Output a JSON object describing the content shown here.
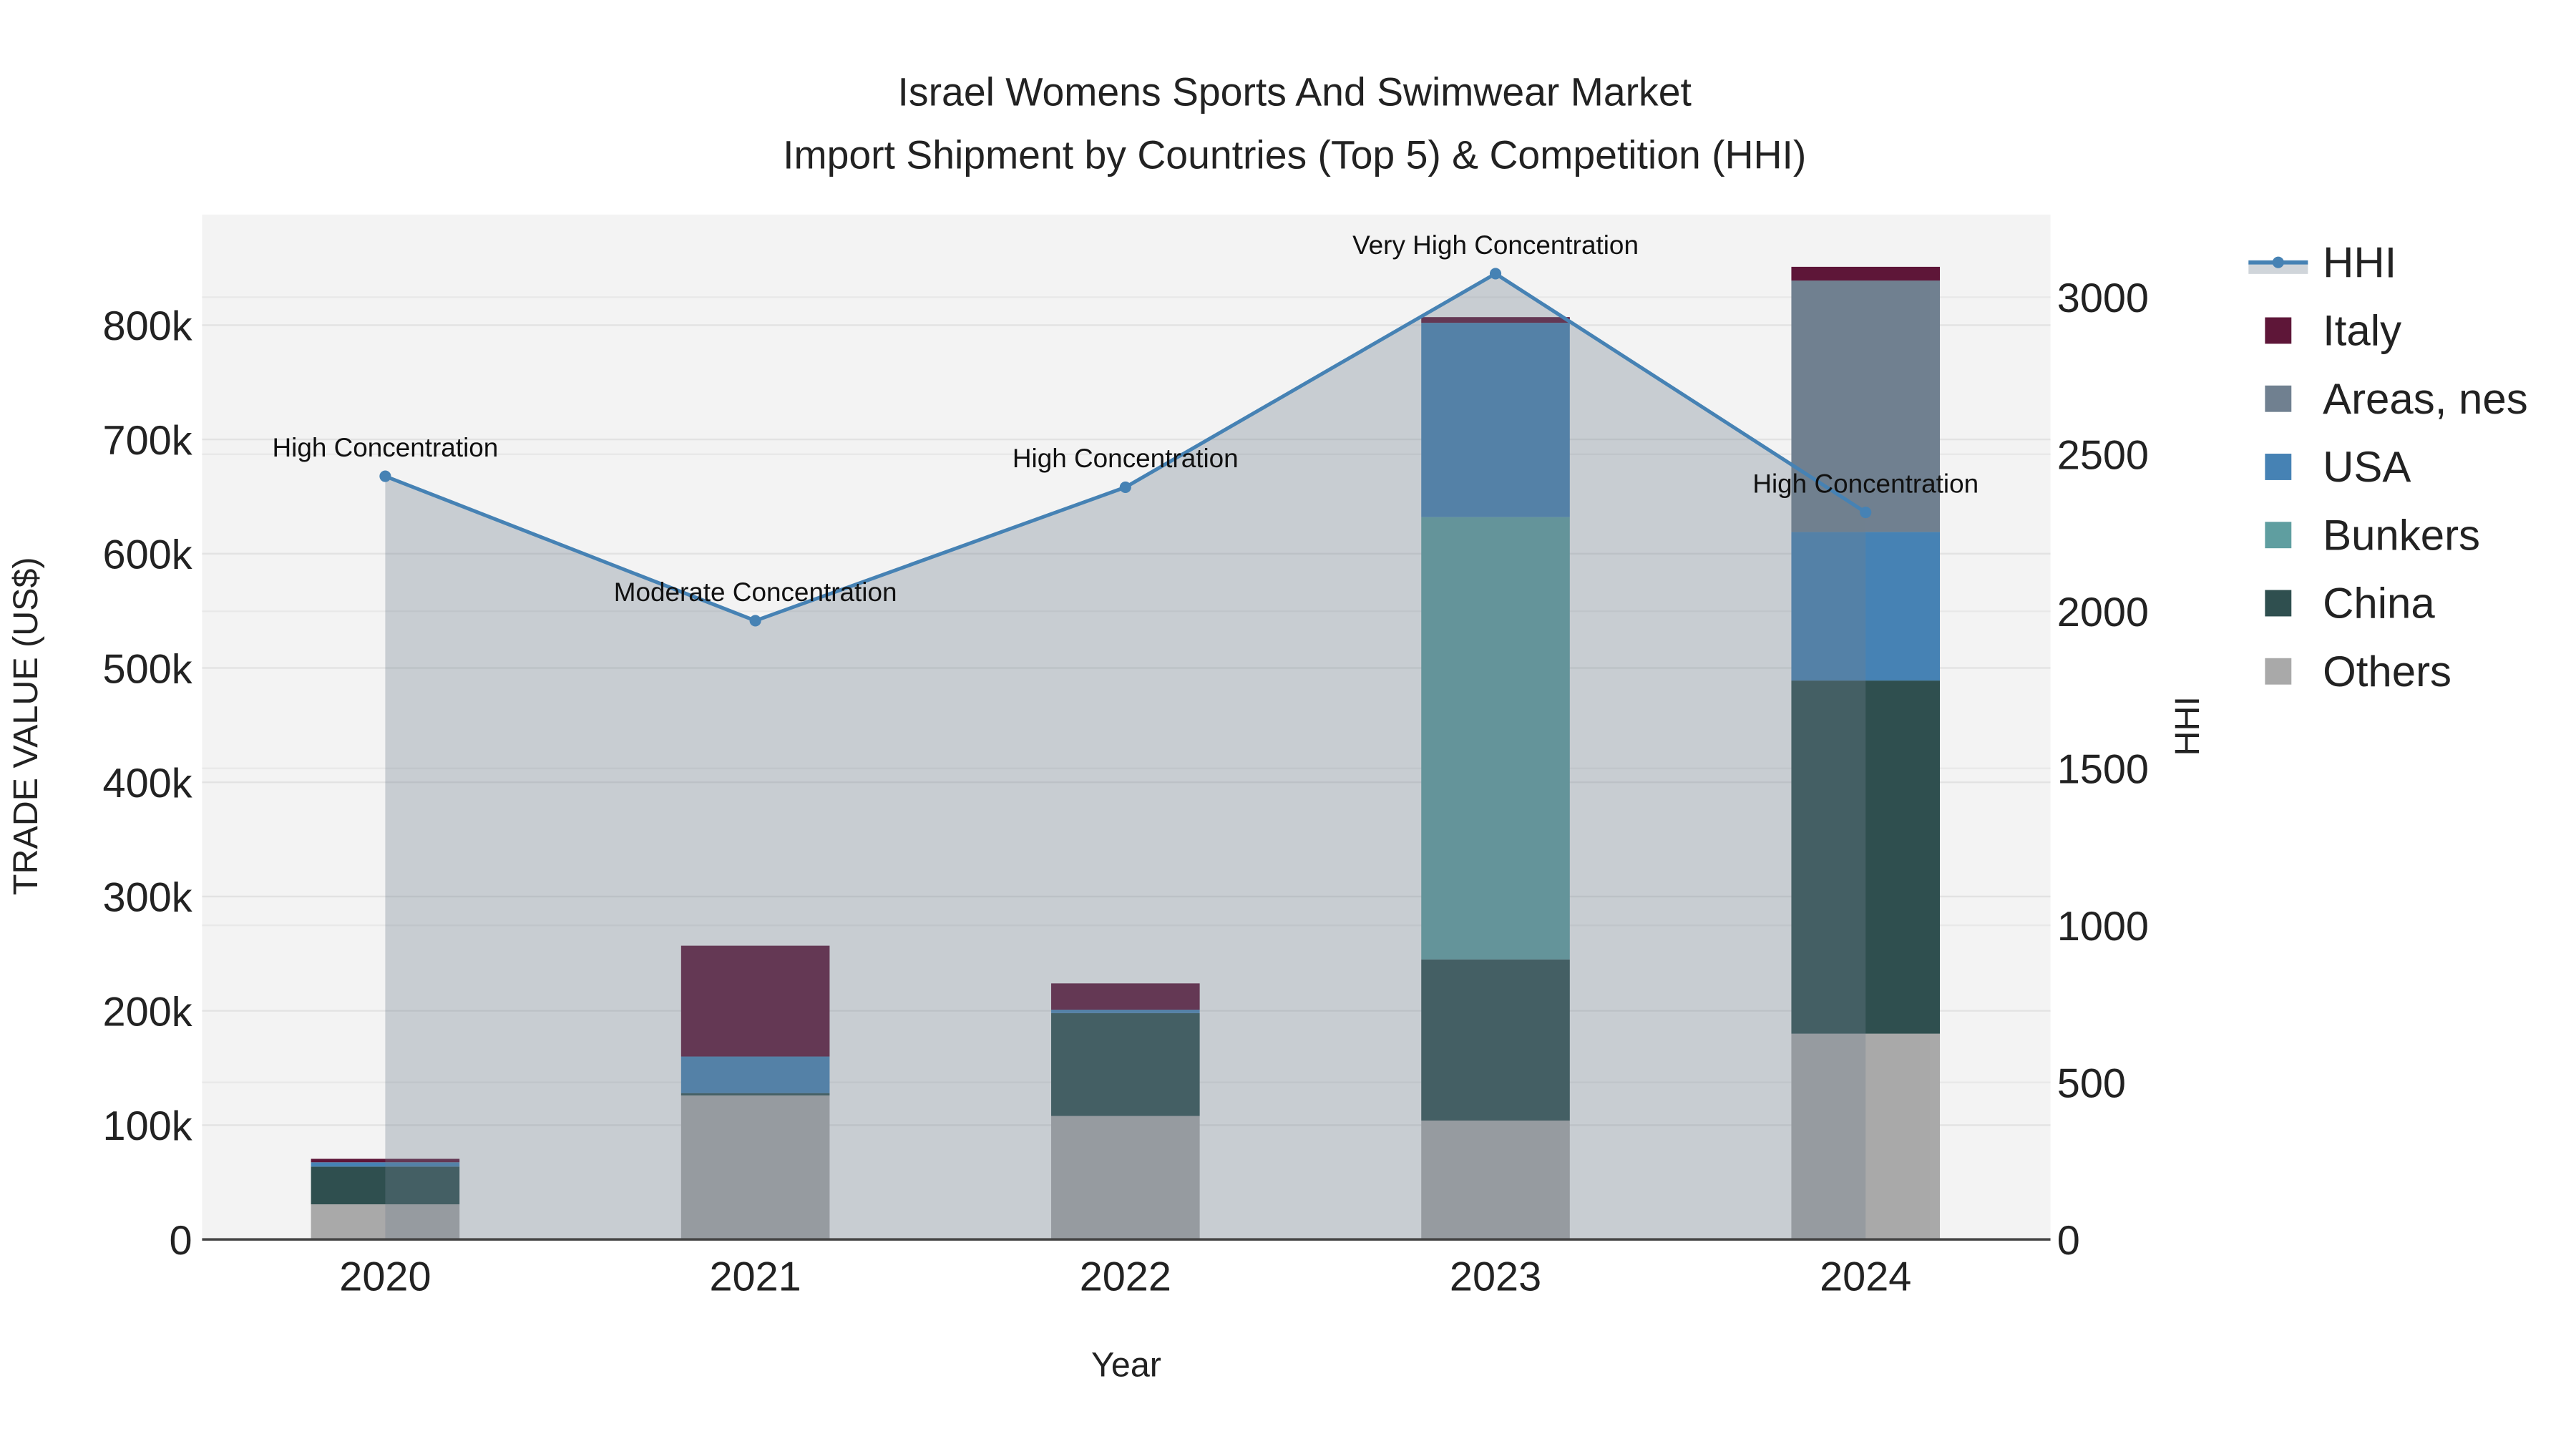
{
  "chart_data": {
    "type": "bar",
    "title_line1": "Israel Womens Sports And Swimwear Market",
    "title_line2": "Import Shipment by Countries (Top 5) & Competition (HHI)",
    "xlabel": "Year",
    "ylabel": "TRADE VALUE (US$)",
    "y2label": "HHI",
    "categories": [
      "2020",
      "2021",
      "2022",
      "2023",
      "2024"
    ],
    "ylim": [
      0,
      900000
    ],
    "y2lim": [
      0,
      3250
    ],
    "yticks": [
      0,
      100000,
      200000,
      300000,
      400000,
      500000,
      600000,
      700000,
      800000
    ],
    "ytick_labels": [
      "0",
      "100k",
      "200k",
      "300k",
      "400k",
      "500k",
      "600k",
      "700k",
      "800k"
    ],
    "y2ticks": [
      0,
      500,
      1000,
      1500,
      2000,
      2500,
      3000
    ],
    "y2tick_labels": [
      "0",
      "500",
      "1000",
      "1500",
      "2000",
      "2500",
      "3000"
    ],
    "series": [
      {
        "name": "Others",
        "color": "#a9a9a9",
        "values": [
          30700,
          126000,
          108000,
          104000,
          180000
        ]
      },
      {
        "name": "China",
        "color": "#2f4f4f",
        "values": [
          33000,
          2000,
          90000,
          141000,
          309000
        ]
      },
      {
        "name": "Bunkers",
        "color": "#5f9ea0",
        "values": [
          0,
          0,
          0,
          387000,
          0
        ]
      },
      {
        "name": "USA",
        "color": "#4682b4",
        "values": [
          3800,
          32000,
          3000,
          170000,
          130000
        ]
      },
      {
        "name": "Areas, nes",
        "color": "#708090",
        "values": [
          0,
          0,
          0,
          0,
          220000
        ]
      },
      {
        "name": "Italy",
        "color": "#5e1638",
        "values": [
          3000,
          97000,
          23000,
          5000,
          12000
        ]
      }
    ],
    "hhi": {
      "name": "HHI",
      "color": "#4682b4",
      "values": [
        2430,
        1970,
        2395,
        3075,
        2315
      ],
      "labels": [
        "High Concentration",
        "Moderate Concentration",
        "High Concentration",
        "Very High Concentration",
        "High Concentration"
      ]
    },
    "legend": [
      "HHI",
      "Italy",
      "Areas, nes",
      "USA",
      "Bunkers",
      "China",
      "Others"
    ],
    "legend_placement": "right",
    "grid": true
  }
}
